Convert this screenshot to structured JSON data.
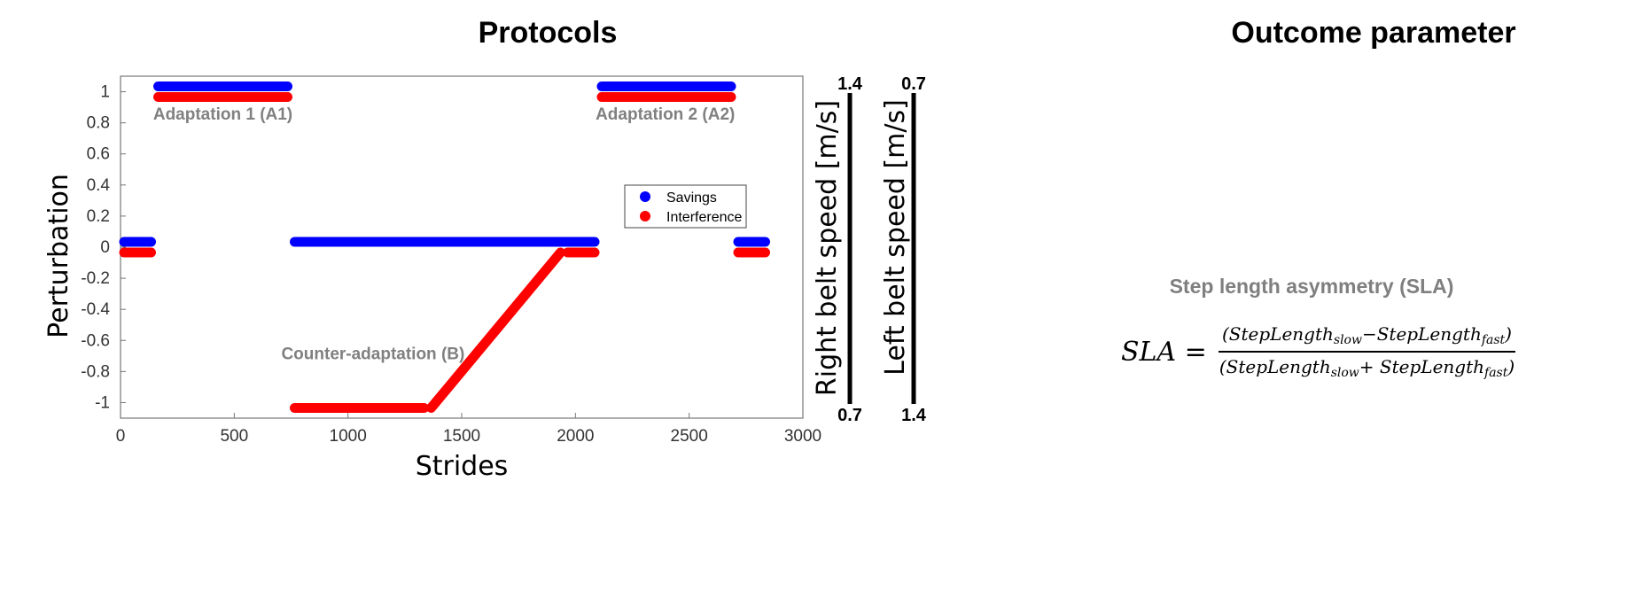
{
  "headings": {
    "left": "Protocols",
    "right": "Outcome parameter"
  },
  "chart_data": {
    "type": "scatter",
    "title": "",
    "xlabel": "Strides",
    "ylabel": "Perturbation",
    "xlim": [
      0,
      3000
    ],
    "ylim": [
      -1.1,
      1.1
    ],
    "xticks": [
      0,
      500,
      1000,
      1500,
      2000,
      2500,
      3000
    ],
    "yticks": [
      1,
      0.8,
      0.6,
      0.4,
      0.2,
      0,
      -0.2,
      -0.4,
      -0.6,
      -0.8,
      -1
    ],
    "grid": false,
    "legend_position": "center-right",
    "series": [
      {
        "name": "Savings",
        "color": "#0000ff",
        "segments": [
          {
            "x": [
              0,
              150
            ],
            "y": [
              0,
              0
            ]
          },
          {
            "x": [
              150,
              750
            ],
            "y": [
              1,
              1
            ]
          },
          {
            "x": [
              750,
              2100
            ],
            "y": [
              0,
              0
            ]
          },
          {
            "x": [
              2100,
              2700
            ],
            "y": [
              1,
              1
            ]
          },
          {
            "x": [
              2700,
              2850
            ],
            "y": [
              0,
              0
            ]
          }
        ]
      },
      {
        "name": "Interference",
        "color": "#ff0000",
        "segments": [
          {
            "x": [
              0,
              150
            ],
            "y": [
              0,
              0
            ]
          },
          {
            "x": [
              150,
              750
            ],
            "y": [
              1,
              1
            ]
          },
          {
            "x": [
              750,
              1350
            ],
            "y": [
              -1,
              -1
            ]
          },
          {
            "x": [
              1350,
              1950
            ],
            "y": [
              -1,
              0
            ]
          },
          {
            "x": [
              1950,
              2100
            ],
            "y": [
              0,
              0
            ]
          },
          {
            "x": [
              2100,
              2700
            ],
            "y": [
              1,
              1
            ]
          },
          {
            "x": [
              2700,
              2850
            ],
            "y": [
              0,
              0
            ]
          }
        ]
      }
    ],
    "annotations": [
      {
        "text": "Adaptation 1 (A1)",
        "x": 450,
        "y": 0.82
      },
      {
        "text": "Adaptation 2 (A2)",
        "x": 2395,
        "y": 0.82
      },
      {
        "text": "Counter-adaptation  (B)",
        "x": 1110,
        "y": -0.72
      }
    ]
  },
  "speed_axes": [
    {
      "label": "Right belt speed [m/s]",
      "top": "1.4",
      "bottom": "0.7"
    },
    {
      "label": "Left belt speed [m/s]",
      "top": "0.7",
      "bottom": "1.4"
    }
  ],
  "sla": {
    "title": "Step length asymmetry (SLA)",
    "lhs": "SLA =",
    "num": {
      "open": "(StepLength",
      "sub1": "slow",
      "mid": "−StepLength",
      "sub2": "fast",
      "close": ")"
    },
    "den": {
      "open": "(StepLength",
      "sub1": "slow",
      "mid": "+ StepLength",
      "sub2": "fast",
      "close": ")"
    }
  }
}
